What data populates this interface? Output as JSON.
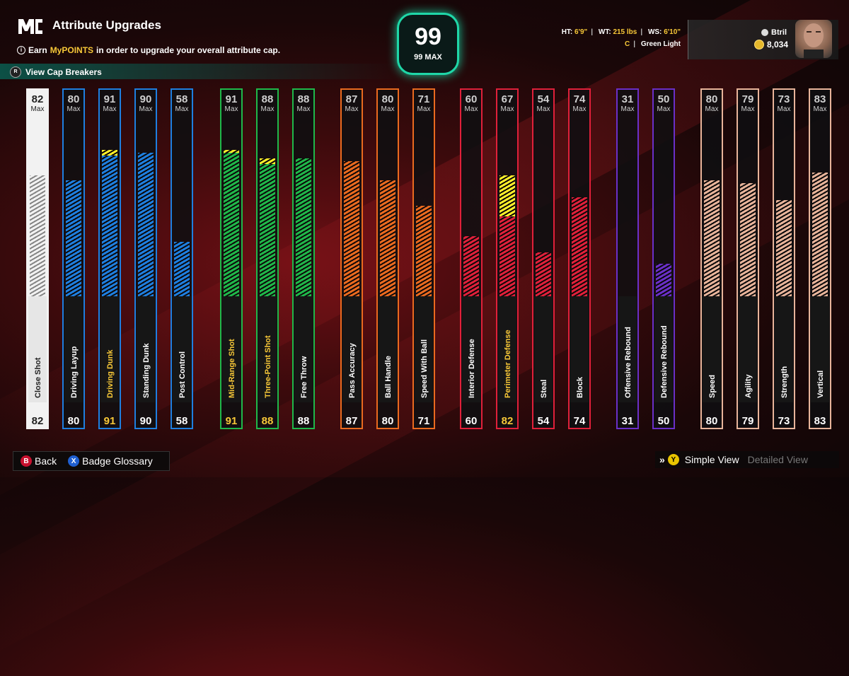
{
  "header": {
    "logo_text": "MC",
    "title": "Attribute Upgrades",
    "subtitle_pre": "Earn",
    "subtitle_highlight": "MyPOINTS",
    "subtitle_post": "in order to upgrade your overall attribute cap.",
    "cap_breakers": "View Cap Breakers"
  },
  "overall": {
    "value": "99",
    "max_label": "99 MAX",
    "accent": "#1fd7a8"
  },
  "stats": {
    "ht_label": "HT:",
    "ht": "6'9\"",
    "wt_label": "WT:",
    "wt": "215 lbs",
    "ws_label": "WS:",
    "ws": "6'10\"",
    "position": "C",
    "jump_shot": "Green Light"
  },
  "player": {
    "name": "Btril",
    "coins": "8,034"
  },
  "max_word": "Max",
  "colors": {
    "white": "#f2f2f2",
    "blue": "#1e7fe0",
    "green": "#1fb84a",
    "orange": "#ea6a1f",
    "red": "#e0203a",
    "purple": "#6a2fc8",
    "tan": "#e8b49a",
    "boost": "#ffef2a",
    "upgraded_value": "#f7c838"
  },
  "attributes": [
    {
      "name": "Close Shot",
      "cap": "82",
      "value": 82,
      "boost": 0,
      "color": "white",
      "upgraded": false
    },
    {
      "name": "Driving Layup",
      "cap": "80",
      "value": 80,
      "boost": 0,
      "color": "blue",
      "upgraded": false
    },
    {
      "name": "Driving Dunk",
      "cap": "91",
      "value": 91,
      "boost": 2,
      "color": "blue",
      "upgraded": true
    },
    {
      "name": "Standing Dunk",
      "cap": "90",
      "value": 90,
      "boost": 0,
      "color": "blue",
      "upgraded": false
    },
    {
      "name": "Post Control",
      "cap": "58",
      "value": 58,
      "boost": 0,
      "color": "blue",
      "upgraded": false
    },
    {
      "name": "Mid-Range Shot",
      "cap": "91",
      "value": 91,
      "boost": 1,
      "color": "green",
      "upgraded": true
    },
    {
      "name": "Three-Point Shot",
      "cap": "88",
      "value": 88,
      "boost": 2,
      "color": "green",
      "upgraded": true
    },
    {
      "name": "Free Throw",
      "cap": "88",
      "value": 88,
      "boost": 0,
      "color": "green",
      "upgraded": false
    },
    {
      "name": "Pass Accuracy",
      "cap": "87",
      "value": 87,
      "boost": 0,
      "color": "orange",
      "upgraded": false
    },
    {
      "name": "Ball Handle",
      "cap": "80",
      "value": 80,
      "boost": 0,
      "color": "orange",
      "upgraded": false
    },
    {
      "name": "Speed With Ball",
      "cap": "71",
      "value": 71,
      "boost": 0,
      "color": "orange",
      "upgraded": false
    },
    {
      "name": "Interior Defense",
      "cap": "60",
      "value": 60,
      "boost": 0,
      "color": "red",
      "upgraded": false
    },
    {
      "name": "Perimeter Defense",
      "cap": "67",
      "value": 82,
      "boost": 15,
      "color": "red",
      "upgraded": true
    },
    {
      "name": "Steal",
      "cap": "54",
      "value": 54,
      "boost": 0,
      "color": "red",
      "upgraded": false
    },
    {
      "name": "Block",
      "cap": "74",
      "value": 74,
      "boost": 0,
      "color": "red",
      "upgraded": false
    },
    {
      "name": "Offensive Rebound",
      "cap": "31",
      "value": 31,
      "boost": 0,
      "color": "purple",
      "upgraded": false
    },
    {
      "name": "Defensive Rebound",
      "cap": "50",
      "value": 50,
      "boost": 0,
      "color": "purple",
      "upgraded": false
    },
    {
      "name": "Speed",
      "cap": "80",
      "value": 80,
      "boost": 0,
      "color": "tan",
      "upgraded": false
    },
    {
      "name": "Agility",
      "cap": "79",
      "value": 79,
      "boost": 0,
      "color": "tan",
      "upgraded": false
    },
    {
      "name": "Strength",
      "cap": "73",
      "value": 73,
      "boost": 0,
      "color": "tan",
      "upgraded": false
    },
    {
      "name": "Vertical",
      "cap": "83",
      "value": 83,
      "boost": 0,
      "color": "tan",
      "upgraded": false
    }
  ],
  "footer": {
    "back_key": "B",
    "back": "Back",
    "glossary_key": "X",
    "glossary": "Badge Glossary",
    "view_key": "Y",
    "simple_view": "Simple View",
    "detailed_view": "Detailed View"
  }
}
